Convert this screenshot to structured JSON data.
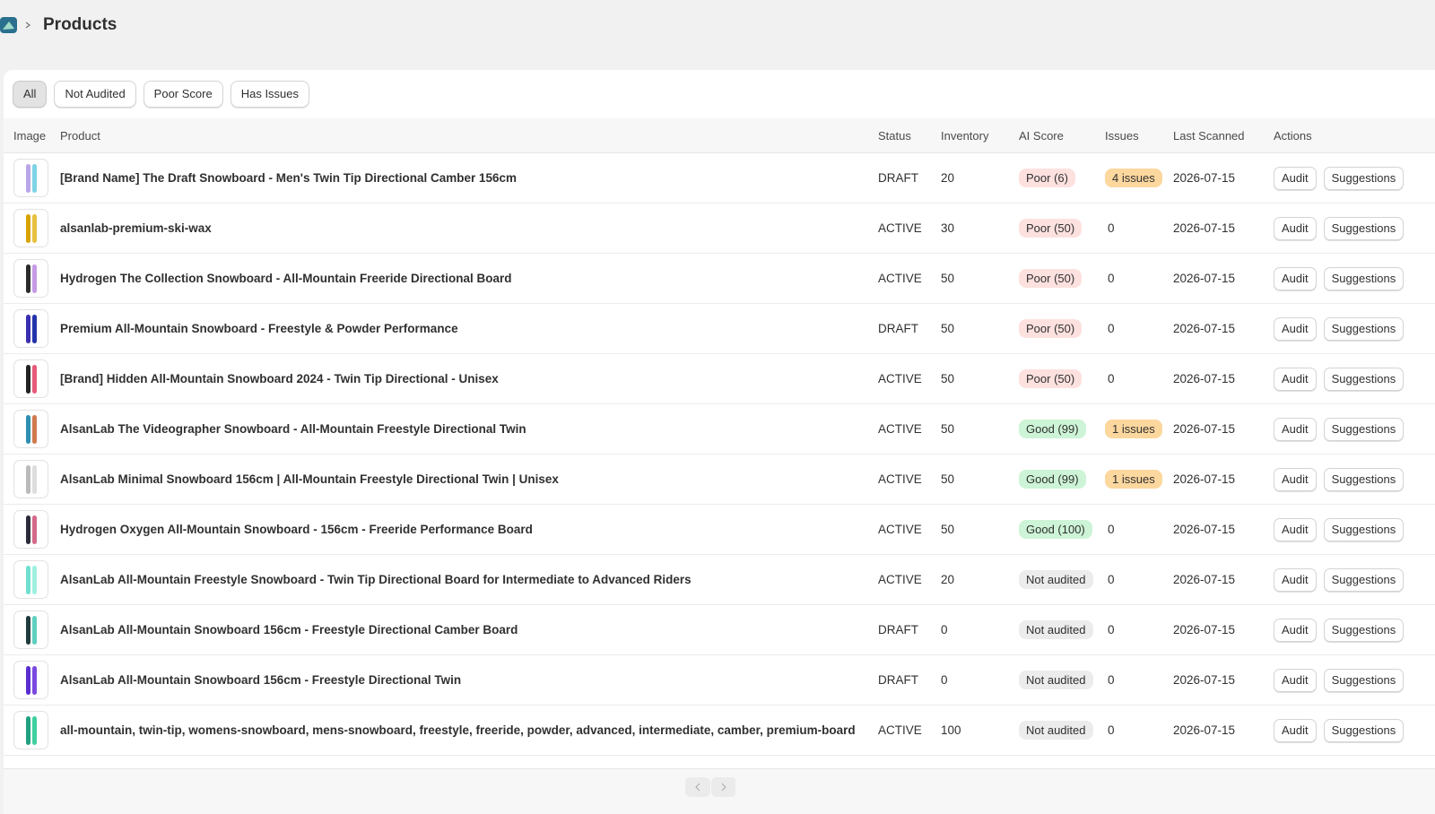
{
  "header": {
    "title": "Products"
  },
  "filters": {
    "items": [
      "All",
      "Not Audited",
      "Poor Score",
      "Has Issues"
    ],
    "active": 0
  },
  "table": {
    "columns": [
      "Image",
      "Product",
      "Status",
      "Inventory",
      "AI Score",
      "Issues",
      "Last Scanned",
      "Actions"
    ],
    "actions": [
      "Audit",
      "Suggestions"
    ],
    "rows": [
      {
        "product": "[Brand Name] The Draft Snowboard - Men's Twin Tip Directional Camber 156cm",
        "status": "DRAFT",
        "inventory": 20,
        "score": "Poor (6)",
        "score_color": "#fde1df",
        "issues": "4 issues",
        "issues_color": "#fcd79e",
        "last_scanned": "2026-07-15"
      },
      {
        "product": "alsanlab-premium-ski-wax",
        "status": "ACTIVE",
        "inventory": 30,
        "score": "Poor (50)",
        "score_color": "#fde1df",
        "issues": "0",
        "issues_color": null,
        "last_scanned": "2026-07-15"
      },
      {
        "product": "Hydrogen The Collection Snowboard - All-Mountain Freeride Directional Board",
        "status": "ACTIVE",
        "inventory": 50,
        "score": "Poor (50)",
        "score_color": "#fde1df",
        "issues": "0",
        "issues_color": null,
        "last_scanned": "2026-07-15"
      },
      {
        "product": "Premium All-Mountain Snowboard - Freestyle & Powder Performance",
        "status": "DRAFT",
        "inventory": 50,
        "score": "Poor (50)",
        "score_color": "#fde1df",
        "issues": "0",
        "issues_color": null,
        "last_scanned": "2026-07-15"
      },
      {
        "product": "[Brand] Hidden All-Mountain Snowboard 2024 - Twin Tip Directional - Unisex",
        "status": "ACTIVE",
        "inventory": 50,
        "score": "Poor (50)",
        "score_color": "#fde1df",
        "issues": "0",
        "issues_color": null,
        "last_scanned": "2026-07-15"
      },
      {
        "product": "AlsanLab The Videographer Snowboard - All-Mountain Freestyle Directional Twin",
        "status": "ACTIVE",
        "inventory": 50,
        "score": "Good (99)",
        "score_color": "#cdf4d6",
        "issues": "1 issues",
        "issues_color": "#fcd79e",
        "last_scanned": "2026-07-15"
      },
      {
        "product": "AlsanLab Minimal Snowboard 156cm | All-Mountain Freestyle Directional Twin | Unisex",
        "status": "ACTIVE",
        "inventory": 50,
        "score": "Good (99)",
        "score_color": "#cdf4d6",
        "issues": "1 issues",
        "issues_color": "#fcd79e",
        "last_scanned": "2026-07-15"
      },
      {
        "product": "Hydrogen Oxygen All-Mountain Snowboard - 156cm - Freeride Performance Board",
        "status": "ACTIVE",
        "inventory": 50,
        "score": "Good (100)",
        "score_color": "#cdf4d6",
        "issues": "0",
        "issues_color": null,
        "last_scanned": "2026-07-15"
      },
      {
        "product": "AlsanLab All-Mountain Freestyle Snowboard - Twin Tip Directional Board for Intermediate to Advanced Riders",
        "status": "ACTIVE",
        "inventory": 20,
        "score": "Not audited",
        "score_color": "#ececec",
        "issues": "0",
        "issues_color": null,
        "last_scanned": "2026-07-15"
      },
      {
        "product": "AlsanLab All-Mountain Snowboard 156cm - Freestyle Directional Camber Board",
        "status": "DRAFT",
        "inventory": 0,
        "score": "Not audited",
        "score_color": "#ececec",
        "issues": "0",
        "issues_color": null,
        "last_scanned": "2026-07-15"
      },
      {
        "product": "AlsanLab All-Mountain Snowboard 156cm - Freestyle Directional Twin",
        "status": "DRAFT",
        "inventory": 0,
        "score": "Not audited",
        "score_color": "#ececec",
        "issues": "0",
        "issues_color": null,
        "last_scanned": "2026-07-15"
      },
      {
        "product": "all-mountain, twin-tip, womens-snowboard, mens-snowboard, freestyle, freeride, powder, advanced, intermediate, camber, premium-board",
        "status": "ACTIVE",
        "inventory": 100,
        "score": "Not audited",
        "score_color": "#ececec",
        "issues": "0",
        "issues_color": null,
        "last_scanned": "2026-07-15"
      }
    ]
  }
}
